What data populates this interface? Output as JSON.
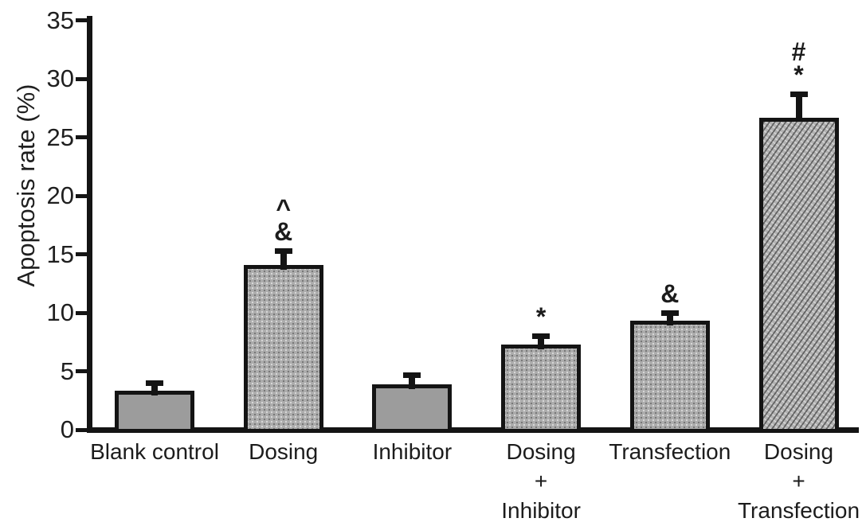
{
  "chart_data": {
    "type": "bar",
    "title": "",
    "xlabel": "",
    "ylabel": "Apoptosis rate (%)",
    "ylim": [
      0,
      35
    ],
    "yticks": [
      0,
      5,
      10,
      15,
      20,
      25,
      30,
      35
    ],
    "grid": false,
    "legend": "none",
    "bars": [
      {
        "label_lines": [
          "Blank control"
        ],
        "value": 3.3,
        "error": 0.9,
        "pattern": "solid",
        "annotations": []
      },
      {
        "label_lines": [
          "Dosing"
        ],
        "value": 14.1,
        "error": 1.4,
        "pattern": "stipple",
        "annotations": [
          "^",
          "&"
        ]
      },
      {
        "label_lines": [
          "Inhibitor"
        ],
        "value": 3.9,
        "error": 1.0,
        "pattern": "solid",
        "annotations": []
      },
      {
        "label_lines": [
          "Dosing",
          "+",
          "Inhibitor"
        ],
        "value": 7.3,
        "error": 0.9,
        "pattern": "stipple",
        "annotations": [
          "*"
        ]
      },
      {
        "label_lines": [
          "Transfection"
        ],
        "value": 9.3,
        "error": 0.9,
        "pattern": "stipple",
        "annotations": [
          "&"
        ]
      },
      {
        "label_lines": [
          "Dosing",
          "+",
          "Transfection"
        ],
        "value": 26.7,
        "error": 2.2,
        "pattern": "weave",
        "annotations": [
          "#",
          "*"
        ]
      }
    ],
    "colors": {
      "bar_fill_solid": "#9c9c9c",
      "bar_fill_textured": "#acacac",
      "bar_border": "#141414",
      "axis": "#141414",
      "text": "#1c1c1c",
      "background": "#ffffff"
    }
  }
}
